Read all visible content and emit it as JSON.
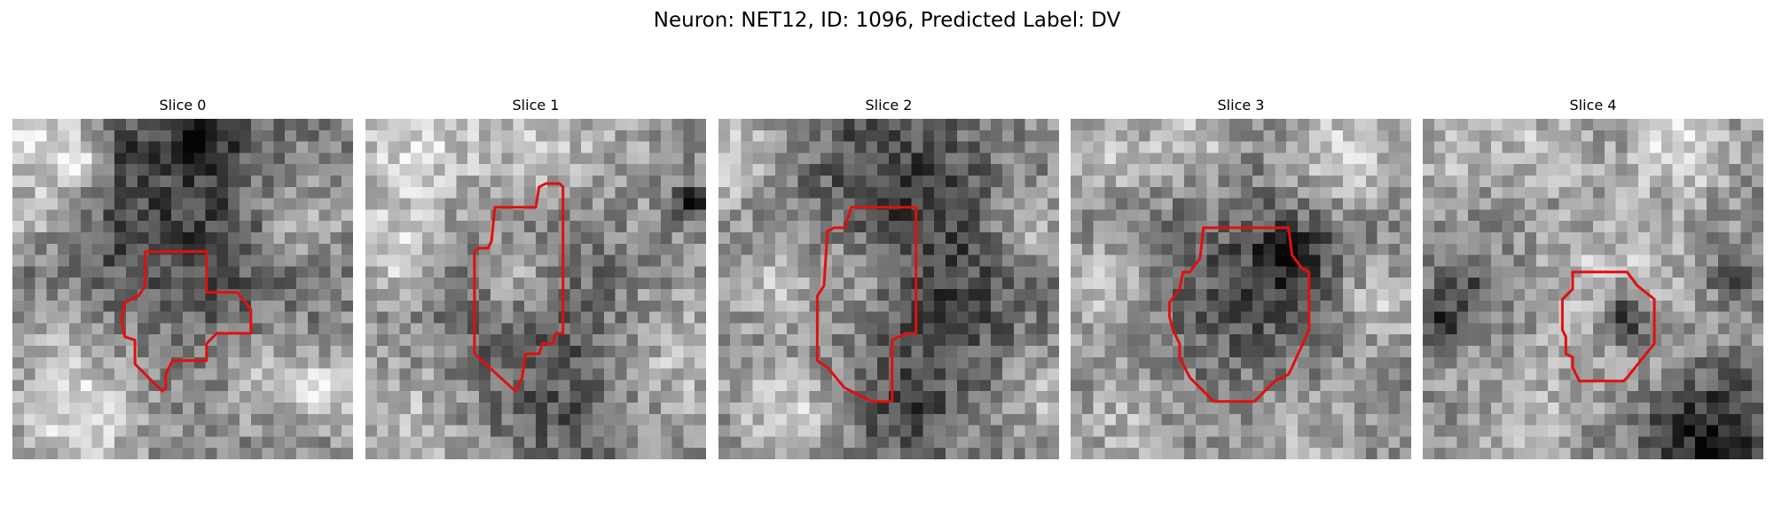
{
  "figure": {
    "title": "Neuron: NET12, ID: 1096, Predicted Label: DV",
    "contour_color": "#e01010",
    "grid_size": 30
  },
  "panels": [
    {
      "label": "Slice 0",
      "texture": {
        "seed": 11,
        "blobs": [
          [
            0.05,
            0.05,
            0.18,
            0.35
          ],
          [
            0.32,
            0.1,
            0.08,
            -0.25
          ],
          [
            0.2,
            0.13,
            0.1,
            0.3
          ],
          [
            0.55,
            0.05,
            0.1,
            -0.35
          ],
          [
            0.85,
            0.3,
            0.15,
            0.25
          ],
          [
            0.5,
            0.35,
            0.4,
            -0.3
          ],
          [
            0.4,
            0.55,
            0.12,
            0.12
          ],
          [
            0.15,
            0.6,
            0.1,
            0.1
          ],
          [
            0.2,
            0.85,
            0.2,
            0.35
          ],
          [
            0.75,
            0.75,
            0.15,
            0.25
          ],
          [
            0.93,
            0.8,
            0.1,
            0.3
          ],
          [
            0.05,
            0.3,
            0.1,
            0.2
          ]
        ]
      },
      "contour": [
        [
          0.39,
          0.39
        ],
        [
          0.57,
          0.39
        ],
        [
          0.57,
          0.51
        ],
        [
          0.66,
          0.51
        ],
        [
          0.7,
          0.56
        ],
        [
          0.7,
          0.63
        ],
        [
          0.6,
          0.63
        ],
        [
          0.57,
          0.66
        ],
        [
          0.57,
          0.71
        ],
        [
          0.47,
          0.71
        ],
        [
          0.45,
          0.75
        ],
        [
          0.45,
          0.79
        ],
        [
          0.44,
          0.8
        ],
        [
          0.36,
          0.72
        ],
        [
          0.36,
          0.65
        ],
        [
          0.33,
          0.64
        ],
        [
          0.32,
          0.59
        ],
        [
          0.33,
          0.54
        ],
        [
          0.37,
          0.52
        ],
        [
          0.39,
          0.49
        ]
      ]
    },
    {
      "label": "Slice 1",
      "texture": {
        "seed": 23,
        "blobs": [
          [
            0.1,
            0.1,
            0.2,
            0.25
          ],
          [
            0.5,
            0.05,
            0.3,
            0.2
          ],
          [
            0.95,
            0.25,
            0.04,
            -0.6
          ],
          [
            0.5,
            0.55,
            0.28,
            -0.25
          ],
          [
            0.45,
            0.48,
            0.12,
            0.3
          ],
          [
            0.1,
            0.4,
            0.12,
            0.3
          ],
          [
            0.1,
            0.9,
            0.2,
            0.2
          ],
          [
            0.6,
            0.9,
            0.2,
            -0.15
          ],
          [
            0.9,
            0.7,
            0.2,
            0.2
          ]
        ]
      },
      "contour": [
        [
          0.38,
          0.26
        ],
        [
          0.5,
          0.26
        ],
        [
          0.51,
          0.2
        ],
        [
          0.53,
          0.19
        ],
        [
          0.57,
          0.19
        ],
        [
          0.58,
          0.2
        ],
        [
          0.58,
          0.63
        ],
        [
          0.56,
          0.63
        ],
        [
          0.55,
          0.66
        ],
        [
          0.52,
          0.66
        ],
        [
          0.51,
          0.69
        ],
        [
          0.47,
          0.69
        ],
        [
          0.46,
          0.76
        ],
        [
          0.44,
          0.8
        ],
        [
          0.32,
          0.69
        ],
        [
          0.32,
          0.39
        ],
        [
          0.33,
          0.38
        ],
        [
          0.36,
          0.38
        ],
        [
          0.37,
          0.36
        ]
      ]
    },
    {
      "label": "Slice 2",
      "texture": {
        "seed": 37,
        "blobs": [
          [
            0.05,
            0.1,
            0.15,
            0.3
          ],
          [
            0.5,
            0.15,
            0.3,
            -0.25
          ],
          [
            0.6,
            0.55,
            0.3,
            -0.3
          ],
          [
            0.4,
            0.48,
            0.18,
            0.3
          ],
          [
            0.15,
            0.5,
            0.1,
            0.2
          ],
          [
            0.2,
            0.85,
            0.15,
            0.3
          ],
          [
            0.55,
            0.9,
            0.15,
            -0.2
          ],
          [
            0.9,
            0.3,
            0.1,
            0.25
          ],
          [
            0.95,
            0.8,
            0.12,
            0.2
          ]
        ]
      },
      "contour": [
        [
          0.39,
          0.26
        ],
        [
          0.58,
          0.26
        ],
        [
          0.58,
          0.3
        ],
        [
          0.58,
          0.63
        ],
        [
          0.55,
          0.63
        ],
        [
          0.51,
          0.65
        ],
        [
          0.51,
          0.83
        ],
        [
          0.45,
          0.83
        ],
        [
          0.37,
          0.79
        ],
        [
          0.32,
          0.73
        ],
        [
          0.29,
          0.71
        ],
        [
          0.29,
          0.52
        ],
        [
          0.31,
          0.49
        ],
        [
          0.32,
          0.33
        ],
        [
          0.34,
          0.32
        ],
        [
          0.37,
          0.32
        ]
      ]
    },
    {
      "label": "Slice 3",
      "texture": {
        "seed": 53,
        "blobs": [
          [
            0.1,
            0.1,
            0.12,
            0.25
          ],
          [
            0.35,
            0.05,
            0.12,
            0.25
          ],
          [
            0.8,
            0.1,
            0.15,
            0.3
          ],
          [
            0.55,
            0.5,
            0.28,
            -0.25
          ],
          [
            0.65,
            0.4,
            0.1,
            -0.3
          ],
          [
            0.1,
            0.5,
            0.12,
            0.25
          ],
          [
            0.9,
            0.55,
            0.12,
            0.25
          ],
          [
            0.15,
            0.9,
            0.15,
            0.15
          ],
          [
            0.7,
            0.9,
            0.18,
            0.15
          ]
        ]
      },
      "contour": [
        [
          0.39,
          0.32
        ],
        [
          0.64,
          0.32
        ],
        [
          0.65,
          0.4
        ],
        [
          0.68,
          0.44
        ],
        [
          0.7,
          0.45
        ],
        [
          0.7,
          0.62
        ],
        [
          0.65,
          0.73
        ],
        [
          0.64,
          0.75
        ],
        [
          0.6,
          0.77
        ],
        [
          0.54,
          0.83
        ],
        [
          0.42,
          0.83
        ],
        [
          0.35,
          0.76
        ],
        [
          0.32,
          0.7
        ],
        [
          0.32,
          0.66
        ],
        [
          0.3,
          0.62
        ],
        [
          0.29,
          0.58
        ],
        [
          0.29,
          0.54
        ],
        [
          0.32,
          0.5
        ],
        [
          0.33,
          0.45
        ],
        [
          0.35,
          0.45
        ],
        [
          0.38,
          0.41
        ]
      ]
    },
    {
      "label": "Slice 4",
      "texture": {
        "seed": 71,
        "blobs": [
          [
            0.1,
            0.1,
            0.12,
            0.25
          ],
          [
            0.35,
            0.08,
            0.12,
            0.2
          ],
          [
            0.75,
            0.08,
            0.15,
            0.3
          ],
          [
            0.6,
            0.58,
            0.08,
            -0.5
          ],
          [
            0.55,
            0.5,
            0.26,
            0.22
          ],
          [
            0.15,
            0.5,
            0.12,
            -0.25
          ],
          [
            0.9,
            0.45,
            0.08,
            -0.25
          ],
          [
            0.85,
            0.95,
            0.2,
            -0.45
          ],
          [
            0.3,
            0.9,
            0.15,
            0.2
          ],
          [
            0.05,
            0.6,
            0.06,
            -0.3
          ]
        ]
      },
      "contour": [
        [
          0.44,
          0.45
        ],
        [
          0.6,
          0.45
        ],
        [
          0.63,
          0.49
        ],
        [
          0.68,
          0.53
        ],
        [
          0.68,
          0.66
        ],
        [
          0.6,
          0.76
        ],
        [
          0.59,
          0.77
        ],
        [
          0.46,
          0.77
        ],
        [
          0.44,
          0.73
        ],
        [
          0.44,
          0.7
        ],
        [
          0.42,
          0.69
        ],
        [
          0.42,
          0.64
        ],
        [
          0.41,
          0.62
        ],
        [
          0.41,
          0.53
        ],
        [
          0.44,
          0.5
        ]
      ]
    }
  ]
}
